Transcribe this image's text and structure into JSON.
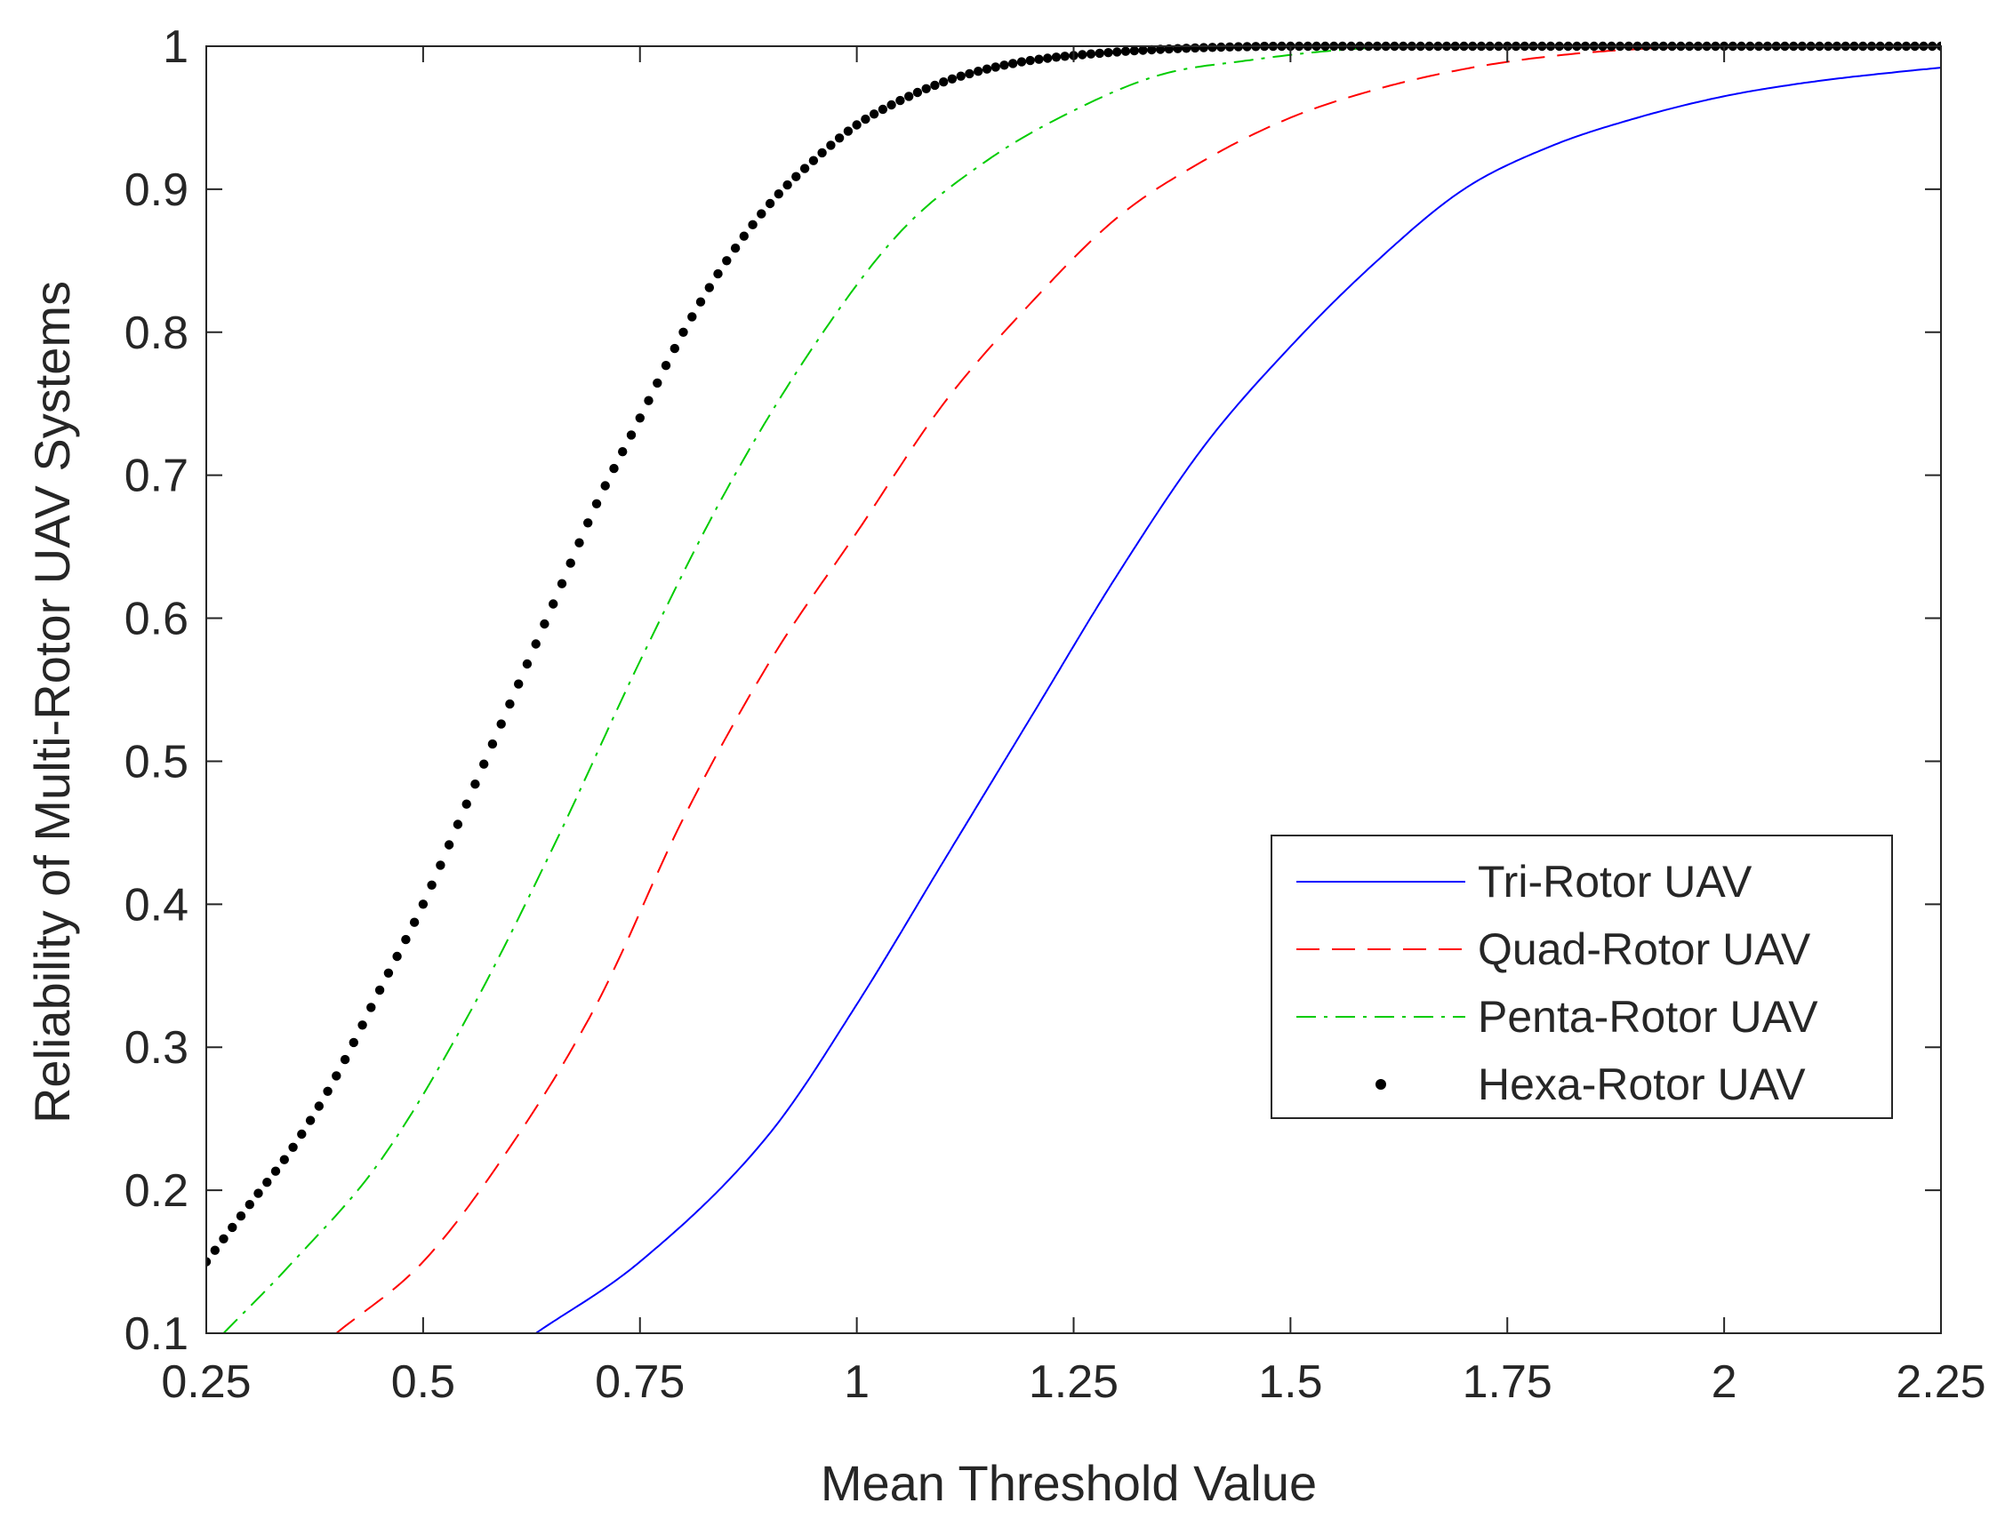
{
  "chart_data": {
    "type": "line",
    "title": "",
    "xlabel": "Mean Threshold Value",
    "ylabel": "Reliability of Multi-Rotor UAV Systems",
    "xlim": [
      0.25,
      2.25
    ],
    "ylim": [
      0.1,
      1
    ],
    "xticks": [
      "0.25",
      "0.5",
      "0.75",
      "1",
      "1.25",
      "1.5",
      "1.75",
      "2",
      "2.25"
    ],
    "yticks": [
      "0.1",
      "0.2",
      "0.3",
      "0.4",
      "0.5",
      "0.6",
      "0.7",
      "0.8",
      "0.9",
      "1"
    ],
    "grid": false,
    "legend_position": "right-middle",
    "series": [
      {
        "name": "Tri-Rotor UAV",
        "color": "#0000ff",
        "style": "solid",
        "x": [
          0.63,
          0.75,
          0.9,
          1.0,
          1.1,
          1.2,
          1.3,
          1.4,
          1.5,
          1.6,
          1.7,
          1.8,
          1.9,
          2.0,
          2.1,
          2.2,
          2.25
        ],
        "y": [
          0.1,
          0.15,
          0.24,
          0.33,
          0.43,
          0.53,
          0.63,
          0.72,
          0.79,
          0.85,
          0.9,
          0.93,
          0.95,
          0.965,
          0.975,
          0.982,
          0.985
        ]
      },
      {
        "name": "Quad-Rotor UAV",
        "color": "#ff0000",
        "style": "dashed",
        "x": [
          0.4,
          0.5,
          0.6,
          0.7,
          0.8,
          0.9,
          1.0,
          1.1,
          1.2,
          1.3,
          1.4,
          1.5,
          1.6,
          1.7,
          1.8,
          1.9,
          2.0,
          2.25
        ],
        "y": [
          0.1,
          0.15,
          0.23,
          0.33,
          0.46,
          0.57,
          0.66,
          0.75,
          0.82,
          0.88,
          0.92,
          0.95,
          0.97,
          0.984,
          0.993,
          0.998,
          1.0,
          1.0
        ]
      },
      {
        "name": "Penta-Rotor UAV",
        "color": "#00cc00",
        "style": "dash-dot",
        "x": [
          0.27,
          0.35,
          0.45,
          0.55,
          0.65,
          0.75,
          0.85,
          0.95,
          1.05,
          1.15,
          1.25,
          1.35,
          1.45,
          1.55,
          1.65,
          2.25
        ],
        "y": [
          0.1,
          0.15,
          0.22,
          0.32,
          0.44,
          0.57,
          0.69,
          0.79,
          0.87,
          0.92,
          0.955,
          0.98,
          0.99,
          0.997,
          1.0,
          1.0
        ]
      },
      {
        "name": "Hexa-Rotor UAV",
        "color": "#000000",
        "style": "dots",
        "x": [
          0.25,
          0.3,
          0.35,
          0.4,
          0.45,
          0.5,
          0.55,
          0.6,
          0.65,
          0.7,
          0.75,
          0.8,
          0.85,
          0.9,
          0.95,
          1.0,
          1.05,
          1.1,
          1.15,
          1.2,
          1.3,
          1.4,
          1.5,
          1.6,
          2.25
        ],
        "y": [
          0.15,
          0.19,
          0.23,
          0.28,
          0.34,
          0.4,
          0.47,
          0.54,
          0.61,
          0.68,
          0.74,
          0.8,
          0.85,
          0.89,
          0.92,
          0.945,
          0.962,
          0.975,
          0.984,
          0.99,
          0.996,
          0.999,
          1.0,
          1.0,
          1.0
        ]
      }
    ]
  }
}
